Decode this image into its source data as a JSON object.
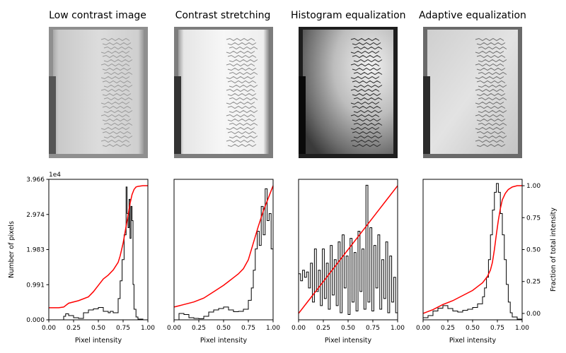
{
  "panels": [
    {
      "title": "Low contrast image"
    },
    {
      "title": "Contrast stretching"
    },
    {
      "title": "Histogram equalization"
    },
    {
      "title": "Adaptive equalization"
    }
  ],
  "colors": {
    "histogram": "#000000",
    "cdf": "#ff0000",
    "axes": "#000000",
    "background": "#ffffff"
  },
  "chart_data": [
    {
      "type": "line",
      "title": "Low contrast image",
      "xlabel": "Pixel intensity",
      "ylabel": "Number of pixels",
      "y_offset_label": "1e4",
      "xlim": [
        0,
        1
      ],
      "ylim": [
        0,
        39660
      ],
      "xticks": [
        "0.00",
        "0.25",
        "0.50",
        "0.75",
        "1.00"
      ],
      "yticks": [
        "0.000",
        "0.991",
        "1.983",
        "2.974",
        "3.966"
      ],
      "series": [
        {
          "x": [
            0.0,
            0.05,
            0.1,
            0.12,
            0.15,
            0.17,
            0.2,
            0.25,
            0.3,
            0.35,
            0.4,
            0.45,
            0.5,
            0.55,
            0.6,
            0.62,
            0.65,
            0.7,
            0.72,
            0.74,
            0.76,
            0.78,
            0.79,
            0.8,
            0.81,
            0.82,
            0.83,
            0.84,
            0.85,
            0.86,
            0.88,
            0.9,
            0.95,
            1.0
          ],
          "y": [
            0,
            0,
            0,
            0,
            1000,
            1700,
            1200,
            600,
            400,
            2000,
            2800,
            3100,
            3500,
            2400,
            2000,
            2400,
            2000,
            6000,
            11000,
            17000,
            24000,
            37500,
            30000,
            26000,
            34000,
            23000,
            32000,
            28000,
            10000,
            3000,
            800,
            200,
            0,
            0
          ]
        },
        {
          "x": [
            0.0,
            0.05,
            0.1,
            0.15,
            0.2,
            0.3,
            0.4,
            0.45,
            0.5,
            0.55,
            0.6,
            0.65,
            0.7,
            0.72,
            0.75,
            0.78,
            0.8,
            0.82,
            0.84,
            0.86,
            0.88,
            0.9,
            0.95,
            1.0
          ],
          "y": [
            0.045,
            0.045,
            0.045,
            0.05,
            0.08,
            0.1,
            0.13,
            0.17,
            0.22,
            0.27,
            0.3,
            0.34,
            0.4,
            0.45,
            0.55,
            0.68,
            0.77,
            0.86,
            0.93,
            0.97,
            0.99,
            0.995,
            1.0,
            1.0
          ]
        }
      ]
    },
    {
      "type": "line",
      "title": "Contrast stretching",
      "xlabel": "Pixel intensity",
      "xlim": [
        0,
        1
      ],
      "ylim": [
        0,
        39660
      ],
      "xticks": [
        "0.00",
        "0.25",
        "0.50",
        "0.75",
        "1.00"
      ],
      "series": [
        {
          "x": [
            0.0,
            0.05,
            0.1,
            0.15,
            0.2,
            0.25,
            0.3,
            0.35,
            0.4,
            0.45,
            0.5,
            0.55,
            0.6,
            0.65,
            0.7,
            0.75,
            0.78,
            0.8,
            0.82,
            0.84,
            0.86,
            0.88,
            0.9,
            0.92,
            0.94,
            0.96,
            0.98,
            1.0
          ],
          "y": [
            0,
            1800,
            1500,
            600,
            400,
            300,
            1000,
            2200,
            2800,
            3200,
            3600,
            2800,
            2300,
            2400,
            3000,
            5500,
            9000,
            14000,
            20000,
            25000,
            21000,
            32000,
            24000,
            37000,
            28000,
            30000,
            20000,
            10000
          ]
        },
        {
          "x": [
            0.0,
            0.05,
            0.1,
            0.2,
            0.3,
            0.4,
            0.5,
            0.55,
            0.6,
            0.65,
            0.7,
            0.75,
            0.8,
            0.85,
            0.9,
            0.95,
            1.0
          ],
          "y": [
            0.05,
            0.06,
            0.07,
            0.09,
            0.12,
            0.17,
            0.22,
            0.25,
            0.28,
            0.31,
            0.35,
            0.42,
            0.55,
            0.68,
            0.8,
            0.9,
            1.0
          ]
        }
      ]
    },
    {
      "type": "line",
      "title": "Histogram equalization",
      "xlabel": "Pixel intensity",
      "xlim": [
        0,
        1
      ],
      "ylim": [
        0,
        39660
      ],
      "xticks": [
        "0.00",
        "0.25",
        "0.50",
        "0.75",
        "1.00"
      ],
      "series": [
        {
          "x": [
            0.0,
            0.02,
            0.04,
            0.06,
            0.08,
            0.1,
            0.12,
            0.14,
            0.16,
            0.18,
            0.2,
            0.22,
            0.24,
            0.26,
            0.28,
            0.3,
            0.32,
            0.34,
            0.36,
            0.38,
            0.4,
            0.42,
            0.44,
            0.46,
            0.48,
            0.5,
            0.52,
            0.54,
            0.56,
            0.58,
            0.6,
            0.62,
            0.64,
            0.66,
            0.68,
            0.7,
            0.72,
            0.74,
            0.76,
            0.78,
            0.8,
            0.82,
            0.84,
            0.86,
            0.88,
            0.9,
            0.92,
            0.94,
            0.96,
            0.98,
            1.0
          ],
          "y": [
            13000,
            11000,
            14000,
            12000,
            13500,
            9000,
            16000,
            5000,
            20000,
            8000,
            14000,
            4000,
            20000,
            6000,
            16000,
            3000,
            21000,
            7000,
            17000,
            4000,
            22000,
            2000,
            24000,
            9000,
            18000,
            1500,
            23000,
            5000,
            19000,
            2500,
            25000,
            8000,
            20000,
            3000,
            38000,
            5000,
            26000,
            2500,
            21000,
            9000,
            24000,
            3000,
            17000,
            6000,
            22000,
            2000,
            18000,
            5000,
            12000,
            2000,
            6000
          ]
        },
        {
          "x": [
            0.0,
            0.1,
            0.2,
            0.3,
            0.4,
            0.5,
            0.6,
            0.7,
            0.8,
            0.9,
            1.0
          ],
          "y": [
            0.0,
            0.1,
            0.2,
            0.3,
            0.4,
            0.5,
            0.6,
            0.7,
            0.8,
            0.9,
            1.0
          ]
        }
      ]
    },
    {
      "type": "line",
      "title": "Adaptive equalization",
      "xlabel": "Pixel intensity",
      "ylabel2": "Fraction of total intensity",
      "xlim": [
        0,
        1
      ],
      "ylim": [
        0,
        39660
      ],
      "ylim2": [
        -0.05,
        1.05
      ],
      "xticks": [
        "0.00",
        "0.25",
        "0.50",
        "0.75",
        "1.00"
      ],
      "yticks2": [
        "0.00",
        "0.25",
        "0.50",
        "0.75",
        "1.00"
      ],
      "series": [
        {
          "x": [
            0.0,
            0.05,
            0.1,
            0.15,
            0.2,
            0.25,
            0.3,
            0.35,
            0.4,
            0.45,
            0.5,
            0.55,
            0.6,
            0.62,
            0.64,
            0.66,
            0.68,
            0.7,
            0.72,
            0.74,
            0.76,
            0.78,
            0.8,
            0.82,
            0.84,
            0.86,
            0.88,
            0.9,
            0.95,
            1.0
          ],
          "y": [
            600,
            1200,
            2500,
            3300,
            4000,
            3200,
            2500,
            2200,
            2700,
            3000,
            3500,
            4500,
            6500,
            9000,
            12000,
            17000,
            24000,
            31000,
            36000,
            38500,
            36000,
            30000,
            24000,
            17000,
            10000,
            5000,
            2000,
            800,
            200,
            0
          ]
        },
        {
          "x": [
            0.0,
            0.1,
            0.2,
            0.3,
            0.4,
            0.5,
            0.55,
            0.6,
            0.65,
            0.68,
            0.7,
            0.72,
            0.74,
            0.76,
            0.78,
            0.8,
            0.83,
            0.86,
            0.9,
            0.95,
            1.0
          ],
          "y": [
            0.0,
            0.03,
            0.07,
            0.1,
            0.14,
            0.18,
            0.21,
            0.24,
            0.29,
            0.34,
            0.4,
            0.5,
            0.62,
            0.73,
            0.82,
            0.89,
            0.94,
            0.97,
            0.99,
            1.0,
            1.0
          ]
        }
      ]
    }
  ]
}
